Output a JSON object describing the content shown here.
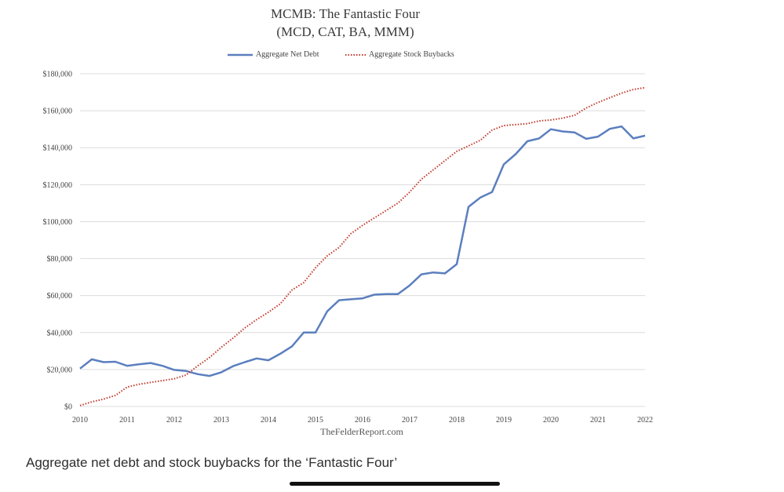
{
  "chart_data": {
    "type": "line",
    "title": "MCMB: The Fantastic Four",
    "subtitle": "(MCD, CAT, BA, MMM)",
    "source": "TheFelderReport.com",
    "xlim": [
      2010,
      2022
    ],
    "ylim": [
      0,
      180000
    ],
    "y_ticks": [
      0,
      20000,
      40000,
      60000,
      80000,
      100000,
      120000,
      140000,
      160000,
      180000
    ],
    "y_tick_labels": [
      "$0",
      "$20,000",
      "$40,000",
      "$60,000",
      "$80,000",
      "$100,000",
      "$120,000",
      "$140,000",
      "$160,000",
      "$180,000"
    ],
    "x_tick_labels": [
      "2010",
      "2011",
      "2012",
      "2013",
      "2014",
      "2015",
      "2016",
      "2017",
      "2018",
      "2019",
      "2020",
      "2021",
      "2022"
    ],
    "grid": "horizontal",
    "legend_placement": "top-center",
    "series": [
      {
        "name": "Aggregate Net Debt",
        "style": "solid",
        "color": "#5b7fbf",
        "x": [
          2010.0,
          2010.25,
          2010.5,
          2010.75,
          2011.0,
          2011.25,
          2011.5,
          2011.75,
          2012.0,
          2012.25,
          2012.5,
          2012.75,
          2013.0,
          2013.25,
          2013.5,
          2013.75,
          2014.0,
          2014.25,
          2014.5,
          2014.75,
          2015.0,
          2015.25,
          2015.5,
          2015.75,
          2016.0,
          2016.25,
          2016.5,
          2016.75,
          2017.0,
          2017.25,
          2017.5,
          2017.75,
          2018.0,
          2018.25,
          2018.5,
          2018.75,
          2019.0,
          2019.25,
          2019.5,
          2019.75,
          2020.0,
          2020.25,
          2020.5,
          2020.75,
          2021.0,
          2021.25,
          2021.5,
          2021.75,
          2022.0
        ],
        "values": [
          20500,
          25500,
          24000,
          24200,
          22000,
          22800,
          23500,
          22000,
          19800,
          19200,
          17500,
          16500,
          18500,
          21800,
          24000,
          26000,
          25000,
          28500,
          32500,
          40000,
          40000,
          51500,
          57500,
          58000,
          58500,
          60500,
          60800,
          60800,
          65500,
          71500,
          72500,
          72000,
          77000,
          108000,
          113000,
          116000,
          131000,
          136500,
          143500,
          145000,
          150000,
          148800,
          148300,
          144800,
          146000,
          150200,
          151500,
          145000,
          146500
        ]
      },
      {
        "name": "Aggregate Stock Buybacks",
        "style": "dotted",
        "color": "#c0392b",
        "x": [
          2010.0,
          2010.25,
          2010.5,
          2010.75,
          2011.0,
          2011.25,
          2011.5,
          2011.75,
          2012.0,
          2012.25,
          2012.5,
          2012.75,
          2013.0,
          2013.25,
          2013.5,
          2013.75,
          2014.0,
          2014.25,
          2014.5,
          2014.75,
          2015.0,
          2015.25,
          2015.5,
          2015.75,
          2016.0,
          2016.25,
          2016.5,
          2016.75,
          2017.0,
          2017.25,
          2017.5,
          2017.75,
          2018.0,
          2018.25,
          2018.5,
          2018.75,
          2019.0,
          2019.25,
          2019.5,
          2019.75,
          2020.0,
          2020.25,
          2020.5,
          2020.75,
          2021.0,
          2021.25,
          2021.5,
          2021.75,
          2022.0
        ],
        "values": [
          500,
          2500,
          4000,
          6000,
          10500,
          12000,
          13000,
          14000,
          15000,
          17000,
          22000,
          26500,
          32000,
          37000,
          42500,
          47000,
          51000,
          55500,
          63000,
          67000,
          75000,
          81500,
          86000,
          93500,
          98000,
          102000,
          106000,
          110000,
          116000,
          123000,
          128000,
          133000,
          138000,
          141000,
          144000,
          149500,
          152000,
          152500,
          153000,
          154500,
          155000,
          156000,
          157500,
          161500,
          164500,
          167000,
          169500,
          171500,
          172500
        ]
      }
    ]
  },
  "caption": "Aggregate net debt and stock buybacks for the ‘Fantastic Four’"
}
